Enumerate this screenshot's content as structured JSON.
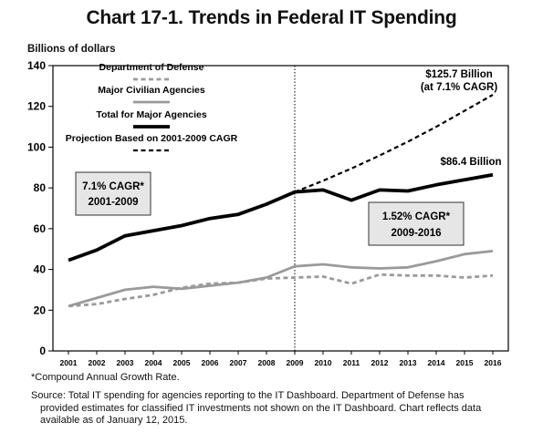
{
  "chart_data": {
    "type": "line",
    "title": "Chart 17-1.  Trends in Federal IT Spending",
    "ylabel": "Billions of dollars",
    "ylim": [
      0,
      140
    ],
    "yticks": [
      0,
      20,
      40,
      60,
      80,
      100,
      120,
      140
    ],
    "x": [
      2001,
      2002,
      2003,
      2004,
      2005,
      2006,
      2007,
      2008,
      2009,
      2010,
      2011,
      2012,
      2013,
      2014,
      2015,
      2016
    ],
    "series": [
      {
        "name": "Department of Defense",
        "color": "#9a9a9a",
        "style": "dashed",
        "values": [
          22,
          23,
          25.5,
          27.5,
          31,
          33,
          33.5,
          35.5,
          36,
          36.5,
          33,
          37.5,
          37,
          37,
          36,
          37
        ]
      },
      {
        "name": "Major Civilian Agencies",
        "color": "#9a9a9a",
        "style": "solid",
        "values": [
          22,
          26,
          30,
          31.5,
          30.5,
          32,
          33.5,
          36,
          41.5,
          42.5,
          41,
          40.5,
          41,
          44,
          47.5,
          49
        ]
      },
      {
        "name": "Total for Major Agencies",
        "color": "#000000",
        "style": "solid",
        "values": [
          44.5,
          49.5,
          56.5,
          59,
          61.5,
          65,
          67,
          72,
          78,
          79,
          74,
          79,
          78.5,
          81.5,
          84,
          86.4
        ]
      },
      {
        "name": "Projection Based on 2001-2009 CAGR",
        "color": "#000000",
        "style": "dashed",
        "x": [
          2009,
          2010,
          2011,
          2012,
          2013,
          2014,
          2015,
          2016
        ],
        "values": [
          78,
          83.5,
          89.5,
          95.9,
          102.7,
          110,
          117.8,
          125.7
        ]
      }
    ],
    "annotations": {
      "projection_label_1": "$125.7 Billion",
      "projection_label_2": "(at 7.1% CAGR)",
      "end_label": "$86.4 Billion",
      "cagr_left_1": "7.1% CAGR*",
      "cagr_left_2": "2001-2009",
      "cagr_right_1": "1.52% CAGR*",
      "cagr_right_2": "2009-2016"
    },
    "reference_line_x": 2009,
    "grid": false,
    "legend_position": "top-left"
  },
  "footnote": "*Compound Annual Growth Rate.",
  "source_line_1": "Source:  Total IT spending for agencies reporting to the IT Dashboard.  Department of Defense has",
  "source_line_2": "provided estimates for classified IT investments not shown on the IT Dashboard.  Chart reflects data",
  "source_line_3": "available as of January 12, 2015."
}
